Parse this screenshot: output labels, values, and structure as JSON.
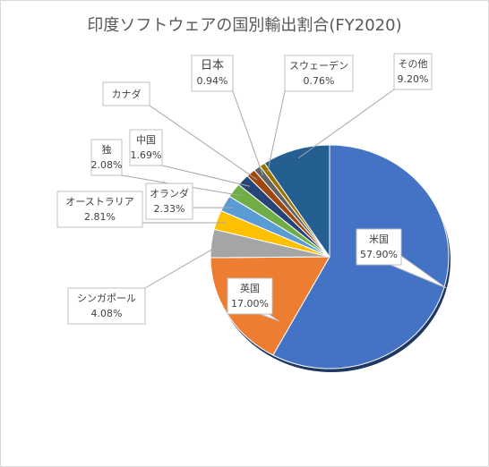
{
  "title": "印度ソフトウェアの国別輸出割合(FY2020)",
  "highlight_color": "#e00000",
  "chart_data": {
    "type": "pie",
    "title": "印度ソフトウェアの国別輸出割合(FY2020)",
    "slices": [
      {
        "name": "米国",
        "pct": "57.90%",
        "value": 57.9,
        "color": "#4472c4"
      },
      {
        "name": "英国",
        "pct": "17.00%",
        "value": 17.0,
        "color": "#ed7d31"
      },
      {
        "name": "シンガポール",
        "pct": "4.08%",
        "value": 4.08,
        "color": "#a5a5a5"
      },
      {
        "name": "オーストラリア",
        "pct": "2.81%",
        "value": 2.81,
        "color": "#ffc000"
      },
      {
        "name": "オランダ",
        "pct": "2.33%",
        "value": 2.33,
        "color": "#5b9bd5"
      },
      {
        "name": "独",
        "pct": "2.08%",
        "value": 2.08,
        "color": "#70ad47"
      },
      {
        "name": "中国",
        "pct": "1.69%",
        "value": 1.69,
        "color": "#264478"
      },
      {
        "name": "カナダ",
        "pct": "",
        "value": 1.25,
        "color": "#9e480e"
      },
      {
        "name": "日本",
        "pct": "0.94%",
        "value": 0.94,
        "color": "#636363"
      },
      {
        "name": "スウェーデン",
        "pct": "0.76%",
        "value": 0.76,
        "color": "#997300"
      },
      {
        "name": "その他",
        "pct": "9.20%",
        "value": 9.2,
        "color": "#255e91"
      }
    ]
  }
}
